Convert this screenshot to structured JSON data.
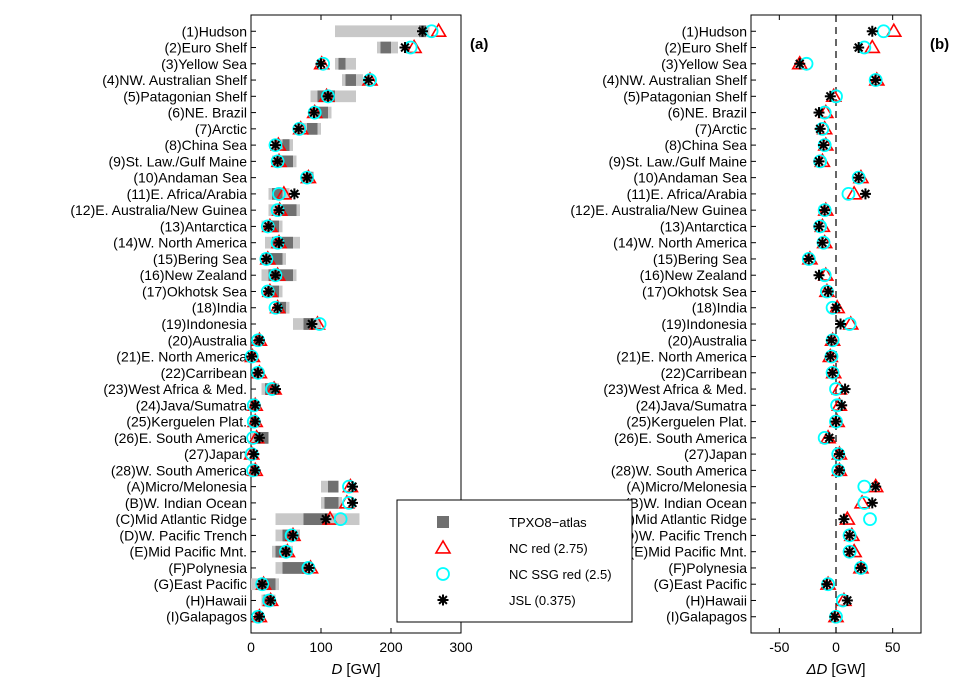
{
  "chart_data": [
    {
      "panel": "(a)",
      "type": "scatter",
      "xlabel_symbol": "D",
      "xlabel_unit": "[GW]",
      "xlim": [
        0,
        300
      ],
      "xticks": [
        0,
        100,
        200,
        300
      ],
      "categories": [
        "(1)Hudson",
        "(2)Euro Shelf",
        "(3)Yellow Sea",
        "(4)NW. Australian Shelf",
        "(5)Patagonian Shelf",
        "(6)NE. Brazil",
        "(7)Arctic",
        "(8)China Sea",
        "(9)St. Law./Gulf Maine",
        "(10)Andaman Sea",
        "(11)E. Africa/Arabia",
        "(12)E. Australia/New Guinea",
        "(13)Antarctica",
        "(14)W. North America",
        "(15)Bering Sea",
        "(16)New Zealand",
        "(17)Okhotsk Sea",
        "(18)India",
        "(19)Indonesia",
        "(20)Australia",
        "(21)E. North America",
        "(22)Carribean",
        "(23)West Africa & Med.",
        "(24)Java/Sumatra",
        "(25)Kerguelen Plat.",
        "(26)E. South America",
        "(27)Japan",
        "(28)W. South America",
        "(A)Micro/Melonesia",
        "(B)W. Indian Ocean",
        "(C)Mid Atlantic Ridge",
        "(D)W. Pacific Trench",
        "(E)Mid Pacific Mnt.",
        "(F)Polynesia",
        "(G)East Pacific",
        "(H)Hawaii",
        "(I)Galapagos"
      ],
      "tpxo_range_light": [
        [
          120,
          255
        ],
        [
          180,
          210
        ],
        [
          120,
          150
        ],
        [
          130,
          160
        ],
        [
          85,
          150
        ],
        [
          85,
          115
        ],
        [
          65,
          100
        ],
        [
          30,
          60
        ],
        [
          30,
          65
        ],
        [
          75,
          90
        ],
        [
          25,
          55
        ],
        [
          25,
          70
        ],
        [
          15,
          45
        ],
        [
          20,
          70
        ],
        [
          15,
          50
        ],
        [
          15,
          65
        ],
        [
          20,
          45
        ],
        [
          35,
          55
        ],
        [
          60,
          100
        ],
        [
          5,
          15
        ],
        [
          0,
          5
        ],
        [
          5,
          15
        ],
        [
          15,
          40
        ],
        [
          0,
          10
        ],
        [
          0,
          10
        ],
        [
          0,
          25
        ],
        [
          0,
          5
        ],
        [
          0,
          10
        ],
        [
          100,
          125
        ],
        [
          100,
          130
        ],
        [
          35,
          155
        ],
        [
          35,
          70
        ],
        [
          30,
          60
        ],
        [
          35,
          85
        ],
        [
          0,
          40
        ],
        [
          15,
          35
        ],
        [
          5,
          15
        ]
      ],
      "tpxo_range_dark": [
        [
          240,
          250
        ],
        [
          185,
          200
        ],
        [
          125,
          135
        ],
        [
          135,
          150
        ],
        [
          95,
          120
        ],
        [
          95,
          110
        ],
        [
          80,
          95
        ],
        [
          45,
          55
        ],
        [
          40,
          60
        ],
        [
          80,
          88
        ],
        [
          30,
          45
        ],
        [
          45,
          65
        ],
        [
          25,
          40
        ],
        [
          30,
          60
        ],
        [
          25,
          45
        ],
        [
          25,
          60
        ],
        [
          25,
          40
        ],
        [
          40,
          50
        ],
        [
          75,
          90
        ],
        [
          5,
          12
        ],
        [
          0,
          3
        ],
        [
          5,
          12
        ],
        [
          20,
          35
        ],
        [
          0,
          8
        ],
        [
          0,
          8
        ],
        [
          5,
          25
        ],
        [
          0,
          4
        ],
        [
          0,
          8
        ],
        [
          110,
          125
        ],
        [
          105,
          125
        ],
        [
          75,
          110
        ],
        [
          45,
          60
        ],
        [
          35,
          55
        ],
        [
          45,
          80
        ],
        [
          10,
          35
        ],
        [
          18,
          30
        ],
        [
          5,
          12
        ]
      ],
      "nc_red": [
        268,
        233,
        101,
        170,
        108,
        91,
        71,
        39,
        40,
        82,
        47,
        41,
        27,
        40,
        24,
        38,
        27,
        38,
        95,
        12,
        2,
        12,
        33,
        6,
        6,
        8,
        1,
        6,
        142,
        137,
        113,
        60,
        52,
        85,
        18,
        28,
        12
      ],
      "nc_ssg_red": [
        258,
        228,
        103,
        170,
        110,
        91,
        69,
        35,
        38,
        80,
        40,
        38,
        24,
        38,
        22,
        35,
        24,
        35,
        98,
        10,
        1,
        10,
        30,
        4,
        4,
        3,
        1,
        3,
        140,
        140,
        128,
        58,
        50,
        82,
        16,
        26,
        10
      ],
      "jsl": [
        245,
        220,
        100,
        168,
        110,
        90,
        68,
        35,
        38,
        80,
        62,
        40,
        25,
        40,
        22,
        35,
        25,
        38,
        87,
        12,
        1,
        10,
        35,
        6,
        6,
        12,
        4,
        6,
        145,
        145,
        107,
        60,
        50,
        83,
        16,
        28,
        12
      ]
    },
    {
      "panel": "(b)",
      "type": "scatter",
      "xlabel_symbol": "ΔD",
      "xlabel_unit": "[GW]",
      "xlim": [
        -75,
        75
      ],
      "xticks": [
        -50,
        0,
        50
      ],
      "zero_line": true,
      "categories": [
        "(1)Hudson",
        "(2)Euro Shelf",
        "(3)Yellow Sea",
        "(4)NW. Australian Shelf",
        "(5)Patagonian Shelf",
        "(6)NE. Brazil",
        "(7)Arctic",
        "(8)China Sea",
        "(9)St. Law./Gulf Maine",
        "(10)Andaman Sea",
        "(11)E. Africa/Arabia",
        "(12)E. Australia/New Guinea",
        "(13)Antarctica",
        "(14)W. North America",
        "(15)Bering Sea",
        "(16)New Zealand",
        "(17)Okhotsk Sea",
        "(18)India",
        "(19)Indonesia",
        "(20)Australia",
        "(21)E. North America",
        "(22)Carribean",
        "(23)West Africa & Med.",
        "(24)Java/Sumatra",
        "(25)Kerguelen Plat.",
        "(26)E. South America",
        "(27)Japan",
        "(28)W. South America",
        "(A)Micro/Melonesia",
        "(B)W. Indian Ocean",
        "(C)Mid Atlantic Ridge",
        "(D)W. Pacific Trench",
        "(E)Mid Pacific Mnt.",
        "(F)Polynesia",
        "(G)East Pacific",
        "(H)Hawaii",
        "(I)Galapagos"
      ],
      "nc_red": [
        51,
        32,
        -32,
        36,
        -2,
        -9,
        -10,
        -9,
        -12,
        22,
        16,
        -9,
        -12,
        -10,
        -23,
        -9,
        -8,
        1,
        13,
        -3,
        -5,
        -2,
        3,
        3,
        1,
        -7,
        3,
        3,
        35,
        23,
        10,
        14,
        16,
        22,
        -7,
        7,
        0
      ],
      "nc_ssg_red": [
        42,
        25,
        -26,
        35,
        0,
        -10,
        -12,
        -10,
        -14,
        20,
        11,
        -10,
        -14,
        -11,
        -24,
        -10,
        -8,
        -3,
        12,
        -3,
        -4,
        -3,
        0,
        1,
        0,
        -10,
        2,
        2,
        25,
        25,
        30,
        12,
        12,
        22,
        -7,
        6,
        0
      ],
      "jsl": [
        32,
        20,
        -32,
        35,
        -5,
        -15,
        -14,
        -11,
        -15,
        20,
        26,
        -10,
        -15,
        -12,
        -24,
        -15,
        -7,
        0,
        4,
        -4,
        -5,
        -3,
        8,
        5,
        0,
        -6,
        3,
        3,
        35,
        32,
        7,
        12,
        12,
        22,
        -8,
        10,
        -1
      ]
    }
  ],
  "legend": [
    {
      "key": "tpxo",
      "label": "TPXO8−atlas",
      "color": "#808080"
    },
    {
      "key": "nc_red",
      "label": "NC red (2.75)",
      "color": "#ff0000"
    },
    {
      "key": "nc_ssg_red",
      "label": "NC SSG red (2.5)",
      "color": "#00ffff"
    },
    {
      "key": "jsl",
      "label": "JSL (0.375)",
      "color": "#000000"
    }
  ],
  "colors": {
    "tpxo_light": "#c8c8c8",
    "tpxo_dark": "#707070",
    "nc_red": "#ff0000",
    "nc_ssg_red": "#00ffff",
    "jsl": "#000000"
  }
}
